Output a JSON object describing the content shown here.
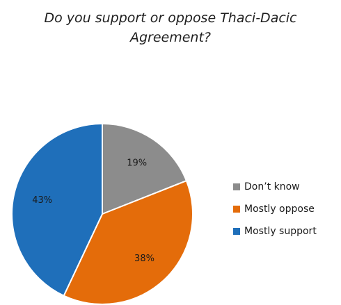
{
  "chart_data": {
    "type": "pie",
    "title": "Do you support or oppose Thaci-Dacic Agreement?",
    "title_lines": [
      "Do you support or oppose Thaci-Dacic",
      "Agreement?"
    ],
    "slices": [
      {
        "name": "Don’t know",
        "value": 19,
        "label": "19%",
        "color": "#8c8c8c"
      },
      {
        "name": "Mostly oppose",
        "value": 38,
        "label": "38%",
        "color": "#e46c0a"
      },
      {
        "name": "Mostly support",
        "value": 43,
        "label": "43%",
        "color": "#1f6fba"
      }
    ],
    "start_angle_deg": 0,
    "direction": "clockwise",
    "legend_position": "right"
  }
}
